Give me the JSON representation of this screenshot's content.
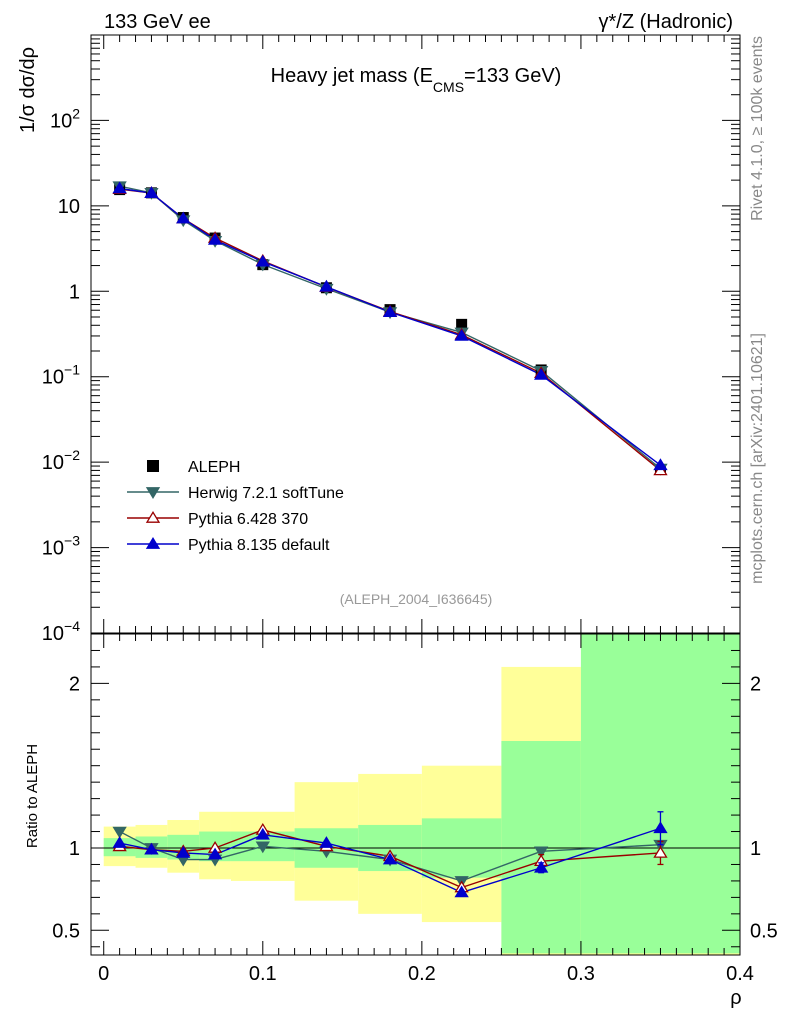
{
  "chart_data": {
    "type": "line",
    "header_left": "133 GeV ee",
    "header_right": "γ*/Z (Hadronic)",
    "title": {
      "main": "Heavy jet mass (E",
      "subscript": "CMS",
      "rest": "=133 GeV)"
    },
    "ylabel": "1/σ  dσ/dρ",
    "ratio_ylabel": "Ratio to ALEPH",
    "xlabel": "ρ",
    "analysis_id": "(ALEPH_2004_I636645)",
    "side_label_top": "Rivet 4.1.0, ≥ 100k events",
    "side_label_bottom": "mcplots.cern.ch [arXiv:2401.10621]",
    "xlim": [
      -0.008,
      0.4
    ],
    "ylim_log": [
      0.0001,
      1000
    ],
    "ratio_ylim": [
      0.35,
      2.3
    ],
    "x_ticks": [
      0,
      0.1,
      0.2,
      0.3,
      0.4
    ],
    "x_tick_labels": [
      "0",
      "0.1",
      "0.2",
      "0.3",
      "0.4"
    ],
    "y_ticks": [
      {
        "base": "10",
        "exp": "−4",
        "value": 0.0001
      },
      {
        "base": "10",
        "exp": "−3",
        "value": 0.001
      },
      {
        "base": "10",
        "exp": "−2",
        "value": 0.01
      },
      {
        "base": "10",
        "exp": "−1",
        "value": 0.1
      },
      {
        "base": "1",
        "exp": "",
        "value": 1
      },
      {
        "base": "10",
        "exp": "",
        "value": 10
      },
      {
        "base": "10",
        "exp": "2",
        "value": 100
      }
    ],
    "ratio_ticks": [
      0.5,
      1,
      2
    ],
    "ratio_tick_labels": [
      "0.5",
      "1",
      "2"
    ],
    "bins": [
      0.0,
      0.02,
      0.04,
      0.06,
      0.08,
      0.12,
      0.16,
      0.2,
      0.25,
      0.3,
      0.4
    ],
    "x": [
      0.01,
      0.03,
      0.05,
      0.07,
      0.1,
      0.14,
      0.18,
      0.225,
      0.275,
      0.35
    ],
    "data": {
      "name": "ALEPH",
      "values": [
        15.5,
        14.2,
        7.3,
        4.2,
        2.05,
        1.1,
        0.61,
        0.41,
        0.12,
        0.0082
      ],
      "band_inner": [
        [
          0.95,
          1.06
        ],
        [
          0.94,
          1.07
        ],
        [
          0.93,
          1.08
        ],
        [
          0.92,
          1.1
        ],
        [
          0.92,
          1.1
        ],
        [
          0.88,
          1.12
        ],
        [
          0.86,
          1.14
        ],
        [
          0.82,
          1.18
        ],
        [
          0.36,
          1.65
        ],
        [
          0.36,
          2.3
        ]
      ],
      "band_outer": [
        [
          0.89,
          1.13
        ],
        [
          0.88,
          1.14
        ],
        [
          0.85,
          1.17
        ],
        [
          0.81,
          1.22
        ],
        [
          0.8,
          1.22
        ],
        [
          0.68,
          1.4
        ],
        [
          0.6,
          1.45
        ],
        [
          0.55,
          1.5
        ],
        [
          0.35,
          2.1
        ],
        [
          0.35,
          2.3
        ]
      ]
    },
    "series": [
      {
        "name": "Herwig 7.2.1 softTune",
        "color": "#336666",
        "marker": "triangle-down-filled",
        "values": [
          17.0,
          14.2,
          6.8,
          3.9,
          2.06,
          1.07,
          0.57,
          0.33,
          0.117,
          0.0084
        ],
        "ratio": [
          1.1,
          1.0,
          0.93,
          0.93,
          1.01,
          0.98,
          0.93,
          0.8,
          0.98,
          1.02
        ],
        "ratio_err": [
          0,
          0,
          0,
          0,
          0,
          0,
          0,
          0,
          0,
          0
        ]
      },
      {
        "name": "Pythia 6.428 370",
        "color": "#990000",
        "marker": "triangle-up-open",
        "values": [
          15.7,
          14.1,
          7.1,
          4.2,
          2.27,
          1.12,
          0.58,
          0.31,
          0.11,
          0.008
        ],
        "ratio": [
          1.01,
          0.99,
          0.98,
          1.0,
          1.11,
          1.01,
          0.95,
          0.76,
          0.92,
          0.97
        ],
        "ratio_err": [
          0,
          0,
          0,
          0,
          0,
          0,
          0,
          0,
          0.04,
          0.07
        ]
      },
      {
        "name": "Pythia 8.135 default",
        "color": "#0000cc",
        "marker": "triangle-up-filled",
        "values": [
          16.0,
          14.1,
          7.1,
          4.0,
          2.22,
          1.13,
          0.57,
          0.3,
          0.105,
          0.0092
        ],
        "ratio": [
          1.03,
          0.99,
          0.97,
          0.96,
          1.08,
          1.03,
          0.93,
          0.73,
          0.88,
          1.12
        ],
        "ratio_err": [
          0,
          0,
          0,
          0,
          0,
          0,
          0,
          0,
          0.03,
          0.1
        ]
      }
    ]
  }
}
